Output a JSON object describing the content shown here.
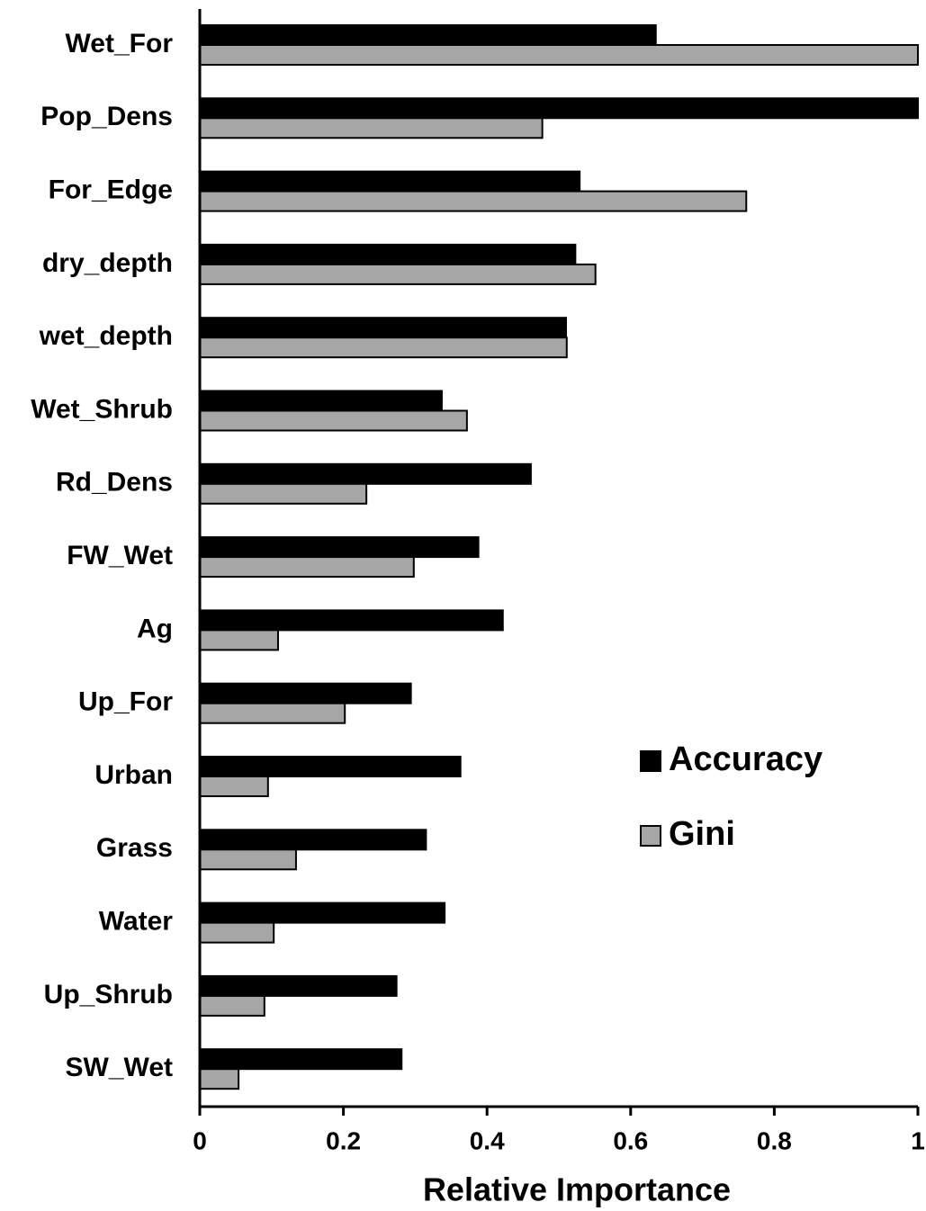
{
  "chart_data": {
    "type": "hbar",
    "xlabel": "Relative Importance",
    "categories": [
      "Wet_For",
      "Pop_Dens",
      "For_Edge",
      "dry_depth",
      "wet_depth",
      "Wet_Shrub",
      "Rd_Dens",
      "FW_Wet",
      "Ag",
      "Up_For",
      "Urban",
      "Grass",
      "Water",
      "Up_Shrub",
      "SW_Wet"
    ],
    "series": [
      {
        "name": "Accuracy",
        "color": "#000000",
        "values": [
          0.635,
          1.0,
          0.529,
          0.523,
          0.51,
          0.337,
          0.461,
          0.388,
          0.422,
          0.294,
          0.363,
          0.315,
          0.341,
          0.274,
          0.281
        ]
      },
      {
        "name": "Gini",
        "color": "#a6a6a6",
        "values": [
          1.0,
          0.477,
          0.761,
          0.551,
          0.511,
          0.372,
          0.232,
          0.298,
          0.109,
          0.202,
          0.095,
          0.134,
          0.103,
          0.09,
          0.054
        ]
      }
    ],
    "xlim": [
      0,
      1
    ],
    "xticks": [
      0,
      0.2,
      0.4,
      0.6,
      0.8,
      1
    ],
    "legend": "center right"
  }
}
